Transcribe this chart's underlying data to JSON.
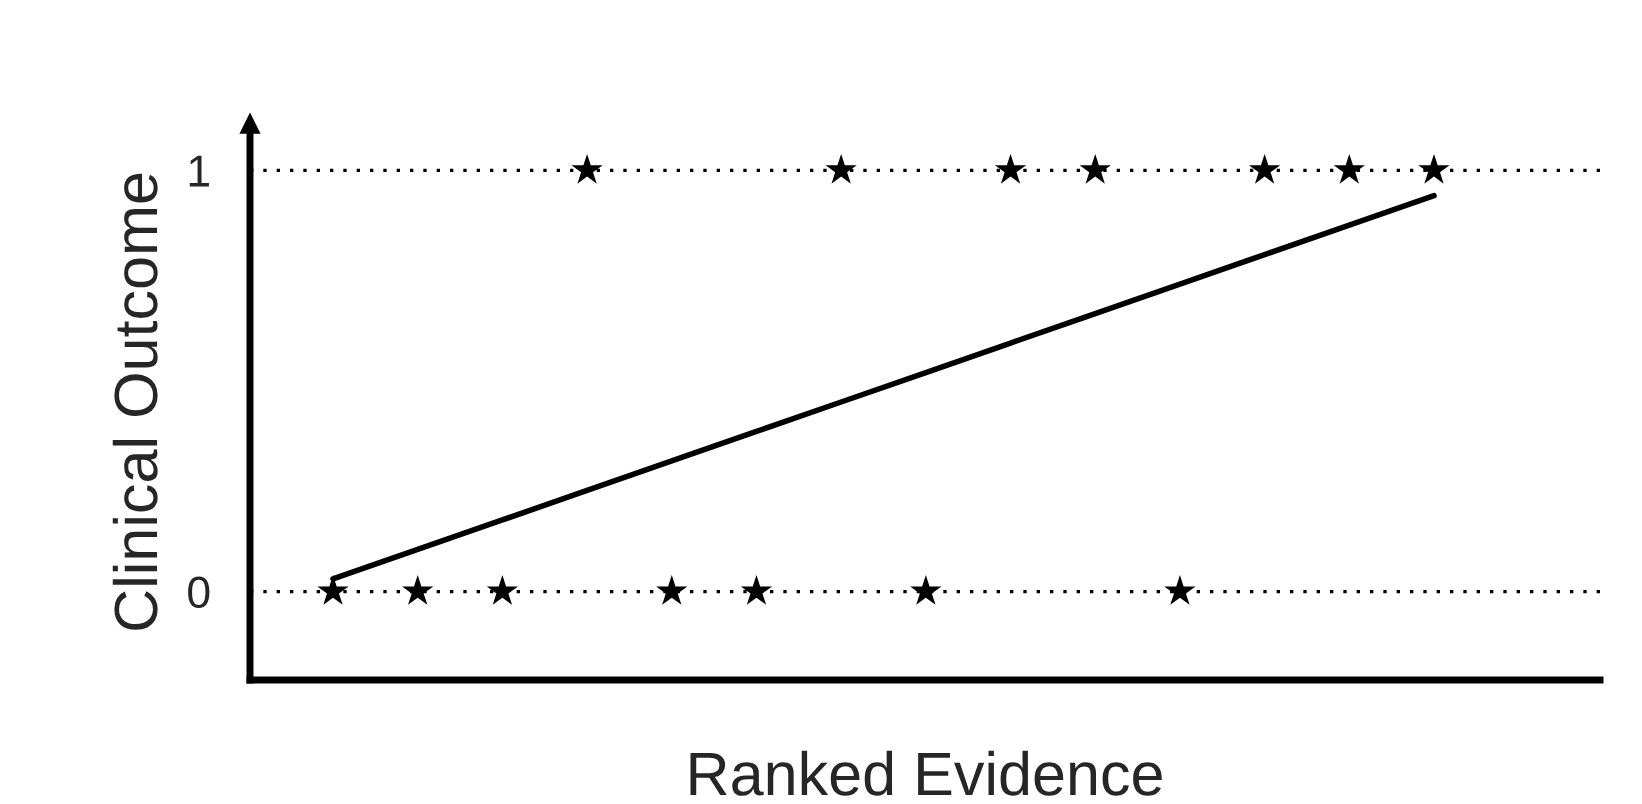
{
  "chart_data": {
    "type": "scatter",
    "xlabel": "Ranked Evidence",
    "ylabel": "Clinical Outcome",
    "categories": [
      null,
      null,
      null,
      null,
      null,
      null,
      null,
      null,
      null,
      null,
      null,
      null,
      null,
      null
    ],
    "series": [
      {
        "type": "scatter",
        "color": "#000000",
        "marker": "star",
        "values": [
          0,
          0,
          0,
          1,
          0,
          0,
          1,
          0,
          1,
          1,
          0,
          1,
          1,
          1
        ]
      },
      {
        "type": "line",
        "color": "#000000",
        "line_style": "solid",
        "marker": "none",
        "values": [
          0.03,
          0.1,
          0.17,
          0.24,
          0.31,
          0.38,
          0.45,
          0.52,
          0.59,
          0.66,
          0.73,
          0.8,
          0.87,
          0.94
        ]
      }
    ],
    "ylim": [
      -0.21,
      1.11
    ],
    "yticks": [
      0,
      1
    ],
    "grid": "y"
  }
}
